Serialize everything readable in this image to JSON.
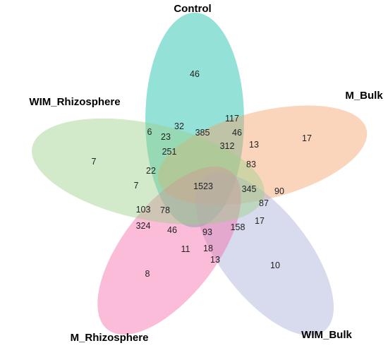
{
  "sets": [
    {
      "key": "control",
      "label": "Control",
      "color": "#3cc8b8"
    },
    {
      "key": "m_bulk",
      "label": "M_Bulk",
      "color": "#f4a26a"
    },
    {
      "key": "wim_bulk",
      "label": "WIM_Bulk",
      "color": "#a8afd6"
    },
    {
      "key": "m_rhizosphere",
      "label": "M_Rhizosphere",
      "color": "#f46aa8"
    },
    {
      "key": "wim_rhizosphere",
      "label": "WIM_Rhizosphere",
      "color": "#9bd08a"
    }
  ],
  "counts": [
    "46",
    "17",
    "10",
    "8",
    "7",
    "117",
    "385",
    "32",
    "6",
    "23",
    "251",
    "312",
    "46",
    "13",
    "83",
    "90",
    "345",
    "87",
    "17",
    "158",
    "93",
    "18",
    "13",
    "11",
    "46",
    "78",
    "103",
    "324",
    "7",
    "22",
    "1523"
  ]
}
